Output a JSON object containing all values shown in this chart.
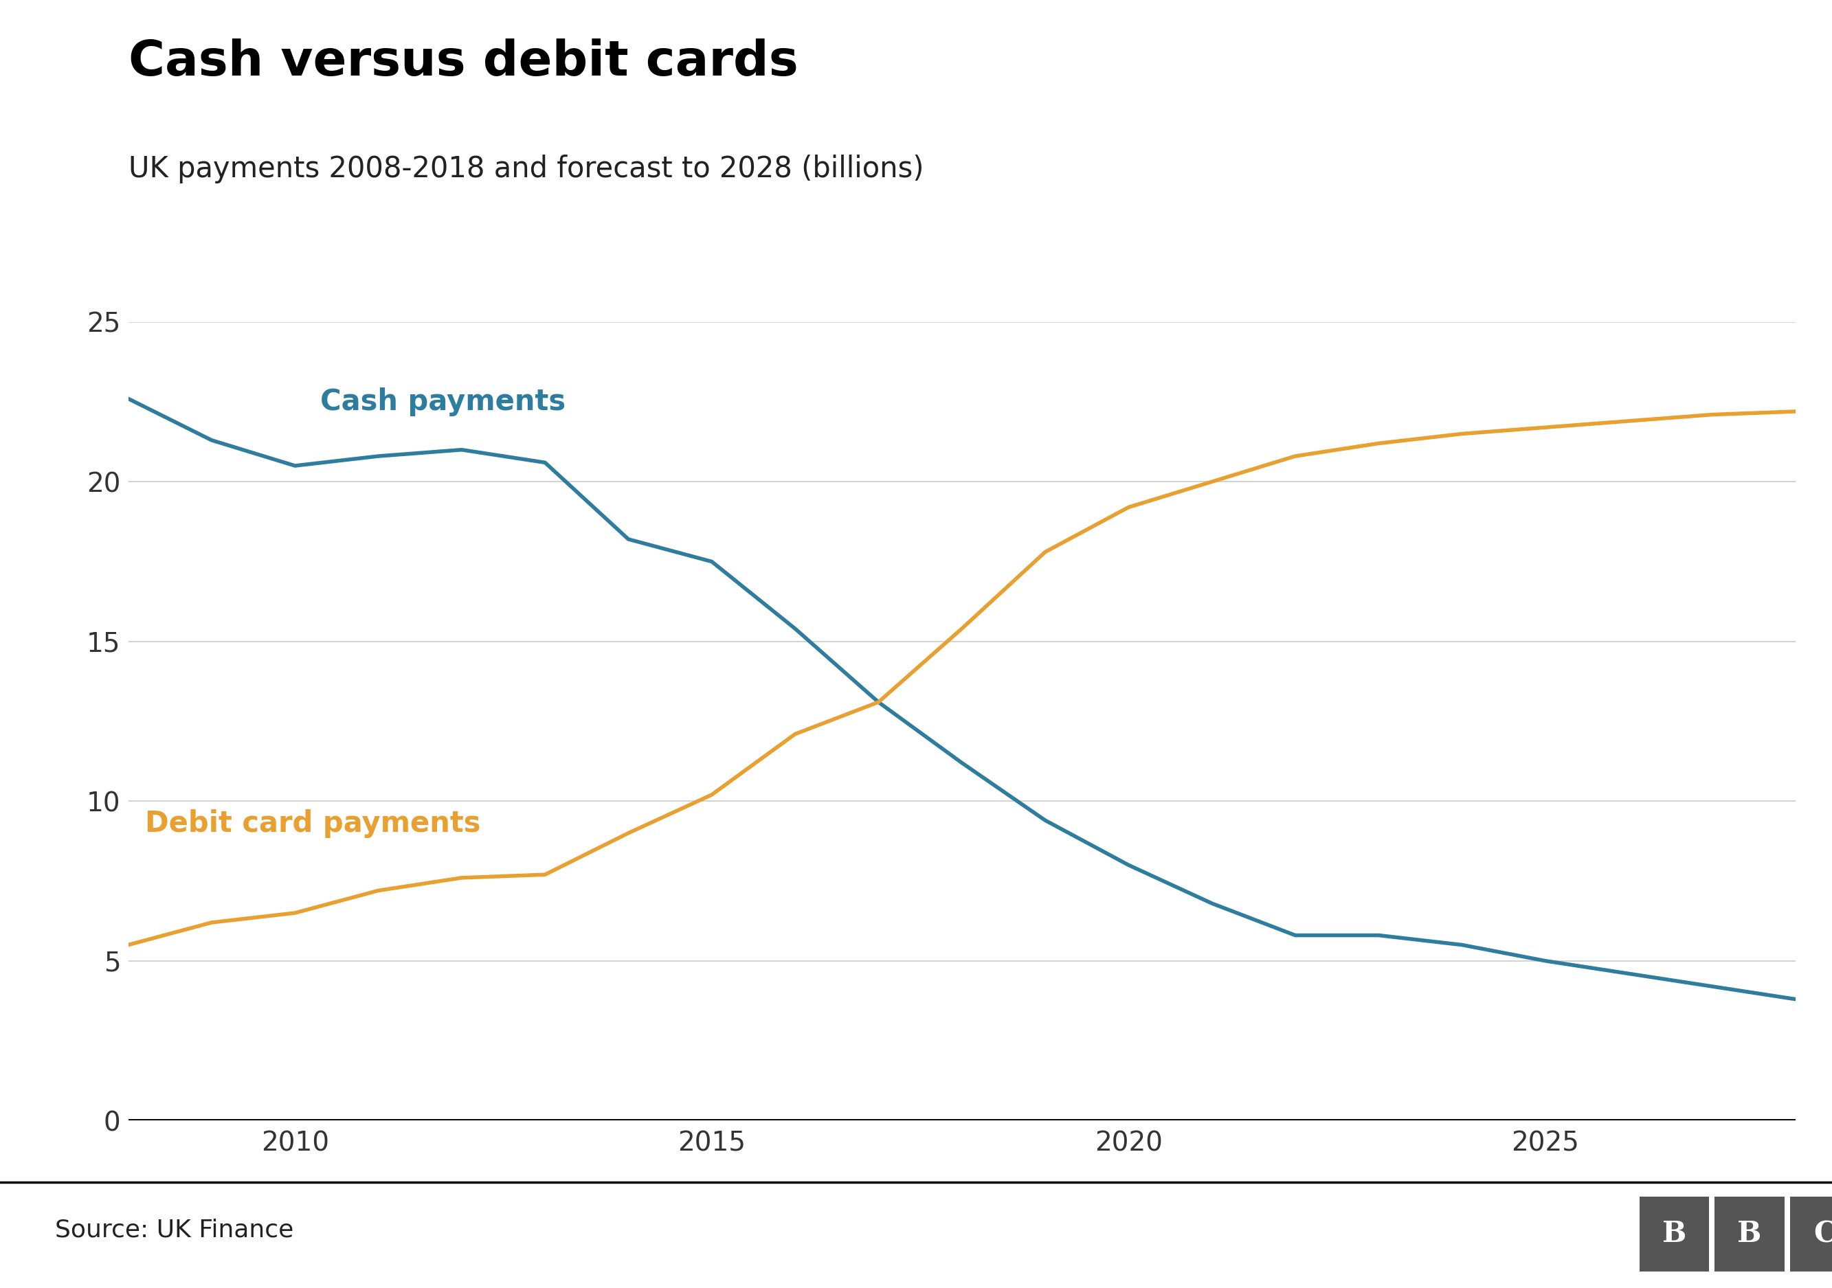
{
  "title": "Cash versus debit cards",
  "subtitle": "UK payments 2008-2018 and forecast to 2028 (billions)",
  "source": "Source: UK Finance",
  "cash_x": [
    2008,
    2009,
    2010,
    2011,
    2012,
    2013,
    2014,
    2015,
    2016,
    2017,
    2018,
    2019,
    2020,
    2021,
    2022,
    2023,
    2024,
    2025,
    2026,
    2027,
    2028
  ],
  "cash_y": [
    22.6,
    21.3,
    20.5,
    20.8,
    21.0,
    20.6,
    18.2,
    17.5,
    15.4,
    13.1,
    11.2,
    9.4,
    8.0,
    6.8,
    5.8,
    5.8,
    5.5,
    5.0,
    4.6,
    4.2,
    3.8
  ],
  "debit_x": [
    2008,
    2009,
    2010,
    2011,
    2012,
    2013,
    2014,
    2015,
    2016,
    2017,
    2018,
    2019,
    2020,
    2021,
    2022,
    2023,
    2024,
    2025,
    2026,
    2027,
    2028
  ],
  "debit_y": [
    5.5,
    6.2,
    6.5,
    7.2,
    7.6,
    7.7,
    9.0,
    10.2,
    12.1,
    13.1,
    15.4,
    17.8,
    19.2,
    20.0,
    20.8,
    21.2,
    21.5,
    21.7,
    21.9,
    22.1,
    22.2
  ],
  "cash_color": "#2e7d9e",
  "debit_color": "#e8a030",
  "cash_label": "Cash payments",
  "debit_label": "Debit card payments",
  "ylim": [
    0,
    25
  ],
  "yticks": [
    0,
    5,
    10,
    15,
    20,
    25
  ],
  "xlim": [
    2008,
    2028
  ],
  "xticks": [
    2010,
    2015,
    2020,
    2025
  ],
  "background_color": "#ffffff",
  "grid_color": "#cccccc",
  "line_width": 4.0,
  "title_fontsize": 52,
  "subtitle_fontsize": 30,
  "tick_fontsize": 28,
  "label_fontsize": 30,
  "source_fontsize": 26,
  "title_color": "#000000",
  "subtitle_color": "#222222",
  "tick_color": "#333333",
  "source_color": "#222222",
  "footer_line_color": "#000000",
  "bbc_box_color": "#555555"
}
